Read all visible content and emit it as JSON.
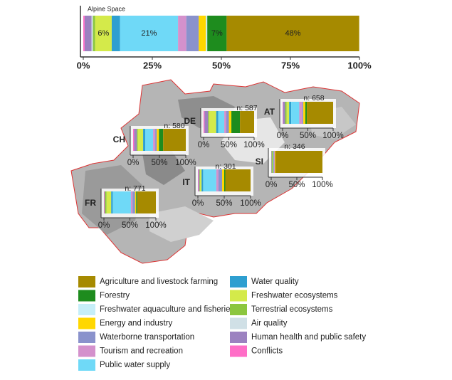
{
  "chart_data": {
    "type": "stacked-bar",
    "categories": [
      "Alpine Space",
      "CH",
      "DE",
      "AT",
      "SI",
      "IT",
      "FR"
    ],
    "annotations": [
      null,
      "n: 580",
      "n: 587",
      "n: 658",
      "n: 346",
      "n: 301",
      "n: 771"
    ],
    "xlim": [
      0,
      100
    ],
    "xticks": [
      {
        "value": 0,
        "label": "0%"
      },
      {
        "value": 25,
        "label": "25%"
      },
      {
        "value": 50,
        "label": "50%"
      },
      {
        "value": 75,
        "label": "75%"
      },
      {
        "value": 100,
        "label": "100%"
      }
    ],
    "small_xticks": [
      {
        "value": 0,
        "label": "0%"
      },
      {
        "value": 50,
        "label": "50%"
      },
      {
        "value": 100,
        "label": "100%"
      }
    ],
    "series": [
      {
        "name": "Agriculture and livestock farming",
        "color": "#a68a00",
        "values": [
          48,
          43,
          28,
          52,
          92,
          48,
          36
        ],
        "value_labels": [
          "48%",
          null,
          null,
          null,
          null,
          null,
          null
        ]
      },
      {
        "name": "Forestry",
        "color": "#1e8c1e",
        "values": [
          7,
          8,
          17,
          3,
          0,
          2,
          2
        ],
        "value_labels": [
          "7%",
          null,
          null,
          null,
          null,
          null,
          null
        ]
      },
      {
        "name": "Freshwater aquaculture and fisheries",
        "color": "#c6eef8",
        "values": [
          0.5,
          0,
          0,
          0,
          0,
          0,
          0
        ]
      },
      {
        "name": "Energy and industry",
        "color": "#ffd700",
        "values": [
          2.6,
          4,
          5,
          4,
          1,
          4,
          2
        ]
      },
      {
        "name": "Waterborne transportation",
        "color": "#8a92cc",
        "values": [
          4.5,
          3,
          5,
          2,
          0,
          7,
          5
        ]
      },
      {
        "name": "Tourism and recreation",
        "color": "#d491cc",
        "values": [
          3,
          4,
          4,
          6,
          2,
          4,
          3
        ]
      },
      {
        "name": "Public water supply",
        "color": "#6fd9f7",
        "values": [
          21,
          15,
          12,
          16,
          0,
          25,
          35
        ],
        "value_labels": [
          "21%",
          null,
          null,
          null,
          null,
          null,
          null
        ]
      },
      {
        "name": "Water quality",
        "color": "#2e9fd0",
        "values": [
          3,
          4,
          4,
          4,
          1,
          3,
          3
        ]
      },
      {
        "name": "Freshwater ecosystems",
        "color": "#d4ea4a",
        "values": [
          6,
          10,
          14,
          5,
          1,
          3,
          9
        ],
        "value_labels": [
          "6%",
          null,
          null,
          null,
          null,
          null,
          null
        ]
      },
      {
        "name": "Terrestrial ecosystems",
        "color": "#8cc63f",
        "values": [
          0.8,
          2,
          2,
          3,
          2,
          1,
          3
        ]
      },
      {
        "name": "Air quality",
        "color": "#d0e0e6",
        "values": [
          0.5,
          0,
          0,
          0,
          0,
          0,
          0
        ]
      },
      {
        "name": "Human health and public safety",
        "color": "#9c82c0",
        "values": [
          2.5,
          5,
          7,
          4,
          1,
          2,
          1
        ]
      },
      {
        "name": "Conflicts",
        "color": "#ff6ec7",
        "values": [
          0.5,
          2,
          2,
          1,
          0,
          1,
          1
        ]
      }
    ]
  }
}
